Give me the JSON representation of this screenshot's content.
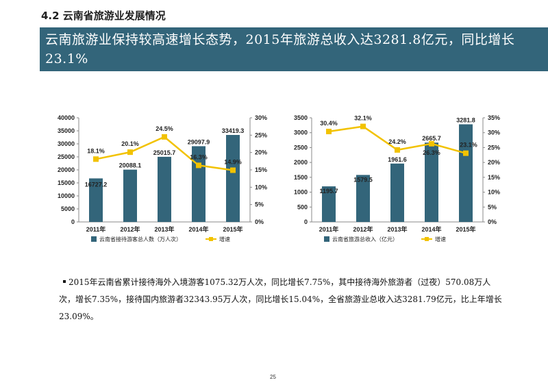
{
  "section_title": "4.2 云南省旅游业发展情况",
  "banner_text": "云南旅游业保持较高速增长态势，2015年旅游总收入达3281.8亿元，同比增长23.1%",
  "chart_data": [
    {
      "type": "bar",
      "categories": [
        "2011年",
        "2012年",
        "2013年",
        "2014年",
        "2015年"
      ],
      "series": [
        {
          "name": "云南省接待游客总人数（万人次）",
          "kind": "bar",
          "axis": "left",
          "color": "#33657a",
          "values": [
            16727.2,
            20088.1,
            25015.7,
            29097.9,
            33419.3
          ],
          "labels": [
            "16727.2",
            "20088.1",
            "25015.7",
            "29097.9",
            "33419.3"
          ]
        },
        {
          "name": "增速",
          "kind": "line",
          "axis": "right",
          "color": "#f2c200",
          "values": [
            18.1,
            20.1,
            24.5,
            16.3,
            14.9
          ],
          "labels": [
            "18.1%",
            "20.1%",
            "24.5%",
            "16.3%",
            "14.9%"
          ]
        }
      ],
      "left_ticks": [
        "0",
        "5000",
        "10000",
        "15000",
        "20000",
        "25000",
        "30000",
        "35000",
        "40000"
      ],
      "right_ticks": [
        "0%",
        "5%",
        "10%",
        "15%",
        "20%",
        "25%",
        "30%"
      ],
      "ylim_left": [
        0,
        40000
      ],
      "ylim_right": [
        0,
        30
      ],
      "legend_position": "bottom"
    },
    {
      "type": "bar",
      "categories": [
        "2011年",
        "2012年",
        "2013年",
        "2014年",
        "2015年"
      ],
      "series": [
        {
          "name": "云南省旅游总收入（亿元）",
          "kind": "bar",
          "axis": "left",
          "color": "#33657a",
          "values": [
            1195.7,
            1579.5,
            1961.6,
            2665.7,
            3281.8
          ],
          "labels": [
            "1195.7",
            "1579.5",
            "1961.6",
            "2665.7",
            "3281.8"
          ]
        },
        {
          "name": "增速",
          "kind": "line",
          "axis": "right",
          "color": "#f2c200",
          "values": [
            30.4,
            32.1,
            24.2,
            26.3,
            23.1
          ],
          "labels": [
            "30.4%",
            "32.1%",
            "24.2%",
            "26.3%",
            "23.1%"
          ]
        }
      ],
      "left_ticks": [
        "0",
        "500",
        "1000",
        "1500",
        "2000",
        "2500",
        "3000",
        "3500"
      ],
      "right_ticks": [
        "0%",
        "5%",
        "10%",
        "15%",
        "20%",
        "25%",
        "30%",
        "35%"
      ],
      "ylim_left": [
        0,
        3500
      ],
      "ylim_right": [
        0,
        35
      ],
      "legend_position": "bottom"
    }
  ],
  "body_paragraph": "2015年云南省累计接待海外入境游客1075.32万人次，同比增长7.75%，其中接待海外旅游者（过夜）570.08万人次，增长7.35%，接待国内旅游者32343.95万人次，同比增长15.04%，全省旅游业总收入达3281.79亿元，比上年增长23.09%。",
  "page_number": "25"
}
